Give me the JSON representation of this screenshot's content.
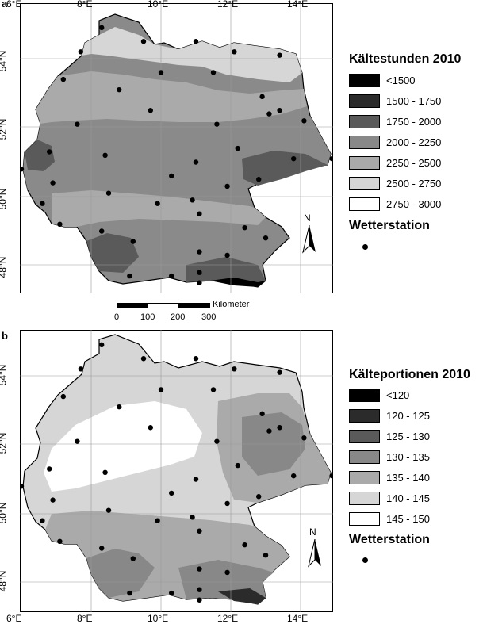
{
  "panels": [
    {
      "letter": "a",
      "x_ticks": [
        "6°E",
        "8°E",
        "10°E",
        "12°E",
        "14°E"
      ],
      "y_ticks": [
        "54°N",
        "52°N",
        "50°N",
        "48°N"
      ],
      "legend": {
        "title": "Kältestunden 2010",
        "classes": [
          {
            "label": "<1500",
            "color": "#000000"
          },
          {
            "label": "1500 - 1750",
            "color": "#2b2b2b"
          },
          {
            "label": "1750 - 2000",
            "color": "#5a5a5a"
          },
          {
            "label": "2000 - 2250",
            "color": "#888888"
          },
          {
            "label": "2250 - 2500",
            "color": "#aaaaaa"
          },
          {
            "label": "2500 - 2750",
            "color": "#d6d6d6"
          },
          {
            "label": "2750 - 3000",
            "color": "#ffffff"
          }
        ]
      },
      "station_label": "Wetterstation",
      "north_label": "N"
    },
    {
      "letter": "b",
      "x_ticks": [
        "6°E",
        "8°E",
        "10°E",
        "12°E",
        "14°E"
      ],
      "y_ticks": [
        "54°N",
        "52°N",
        "50°N",
        "48°N"
      ],
      "legend": {
        "title": "Kälteportionen 2010",
        "classes": [
          {
            "label": "<120",
            "color": "#000000"
          },
          {
            "label": "120 - 125",
            "color": "#2b2b2b"
          },
          {
            "label": "125 - 130",
            "color": "#5a5a5a"
          },
          {
            "label": "130 - 135",
            "color": "#888888"
          },
          {
            "label": "135 - 140",
            "color": "#aaaaaa"
          },
          {
            "label": "140 - 145",
            "color": "#d6d6d6"
          },
          {
            "label": "145 - 150",
            "color": "#ffffff"
          }
        ]
      },
      "station_label": "Wetterstation",
      "north_label": "N"
    }
  ],
  "scalebar": {
    "unit": "Kilometer",
    "ticks": [
      "0",
      "100",
      "200",
      "300"
    ]
  },
  "stations": [
    [
      8.3,
      54.9
    ],
    [
      9.5,
      54.5
    ],
    [
      11.0,
      54.5
    ],
    [
      7.7,
      54.2
    ],
    [
      12.1,
      54.2
    ],
    [
      13.4,
      54.1
    ],
    [
      7.2,
      53.4
    ],
    [
      10.0,
      53.6
    ],
    [
      11.5,
      53.6
    ],
    [
      8.8,
      53.1
    ],
    [
      12.9,
      52.9
    ],
    [
      9.7,
      52.5
    ],
    [
      13.1,
      52.4
    ],
    [
      13.4,
      52.5
    ],
    [
      14.1,
      52.2
    ],
    [
      7.6,
      52.1
    ],
    [
      11.6,
      52.1
    ],
    [
      6.8,
      51.3
    ],
    [
      8.4,
      51.2
    ],
    [
      12.2,
      51.4
    ],
    [
      13.8,
      51.1
    ],
    [
      14.9,
      51.1
    ],
    [
      11.0,
      51.0
    ],
    [
      6.0,
      50.8
    ],
    [
      6.9,
      50.4
    ],
    [
      10.3,
      50.6
    ],
    [
      12.8,
      50.5
    ],
    [
      11.9,
      50.3
    ],
    [
      8.5,
      50.1
    ],
    [
      6.6,
      49.8
    ],
    [
      9.9,
      49.8
    ],
    [
      10.9,
      49.9
    ],
    [
      11.1,
      49.5
    ],
    [
      7.1,
      49.2
    ],
    [
      8.3,
      49.0
    ],
    [
      12.4,
      49.1
    ],
    [
      13.0,
      48.8
    ],
    [
      9.2,
      48.7
    ],
    [
      11.1,
      48.4
    ],
    [
      11.9,
      48.3
    ],
    [
      9.1,
      47.7
    ],
    [
      10.3,
      47.7
    ],
    [
      11.1,
      47.8
    ],
    [
      11.1,
      47.5
    ]
  ]
}
